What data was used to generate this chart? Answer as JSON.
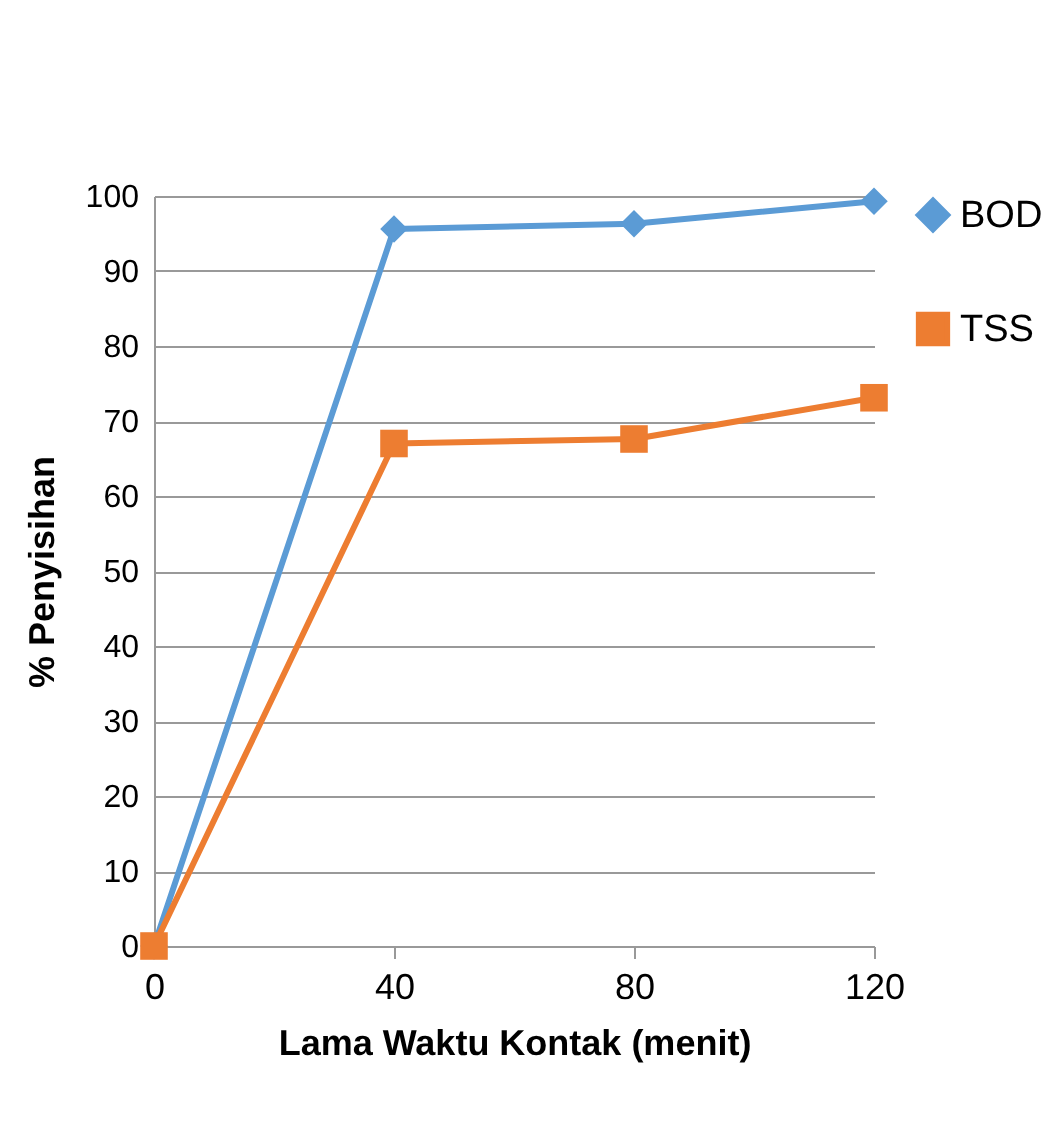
{
  "chart_data": {
    "type": "line",
    "xlabel": "Lama Waktu Kontak (menit)",
    "ylabel": "% Penyisihan",
    "x": [
      0,
      40,
      80,
      120
    ],
    "xlim": [
      0,
      120
    ],
    "xticks": [
      0,
      40,
      80,
      120
    ],
    "ylim": [
      0,
      100
    ],
    "yticks": [
      0,
      10,
      20,
      30,
      40,
      50,
      60,
      70,
      80,
      90,
      100
    ],
    "grid": "y",
    "legend": "right",
    "series": [
      {
        "name": "BOD",
        "color": "#5b9bd5",
        "marker": "diamond",
        "values": [
          0,
          95.6,
          96.3,
          99.3
        ]
      },
      {
        "name": "TSS",
        "color": "#ed7d31",
        "marker": "square",
        "values": [
          0,
          67.0,
          67.6,
          73.1
        ]
      }
    ]
  }
}
